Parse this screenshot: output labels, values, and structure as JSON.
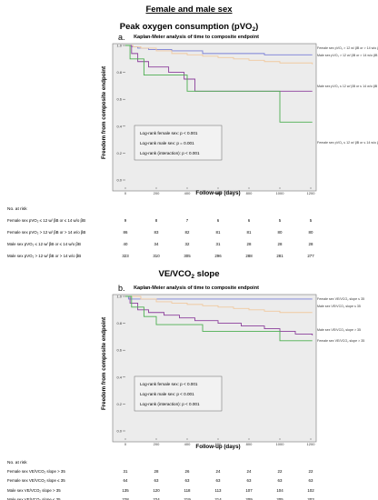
{
  "page": {
    "title": "Female and male sex"
  },
  "panels": [
    {
      "section_title": "Peak oxygen consumption (pVO",
      "section_sub": "2",
      "section_tail": ")",
      "panel_label": "a.",
      "plot_title": "Kaplan-Meier analysis of time to composite endpoint",
      "logrank": [
        "Log-rank female sex: p < 0.001",
        "Log-rank male sex: p = 0.001",
        "Log-rank (interaction): p < 0.001"
      ],
      "risk_header": "No. at risk",
      "risk_rows": [
        {
          "label": "Female sex pVO₂ ≤ 12 w/ βB or ≤ 14 w/o βB",
          "values": [
            "9",
            "8",
            "7",
            "6",
            "6",
            "5",
            "5"
          ]
        },
        {
          "label": "Female sex pVO₂ > 12 w/ βB or > 14 w/o βB",
          "values": [
            "86",
            "83",
            "82",
            "81",
            "81",
            "80",
            "80"
          ]
        },
        {
          "label": "Male sex pVO₂ ≤ 12 w/ βB or ≤ 14 w/o βB",
          "values": [
            "40",
            "34",
            "32",
            "31",
            "28",
            "28",
            "28"
          ]
        },
        {
          "label": "Male sex pVO₂ > 12 w/ βB or > 14 w/o βB",
          "values": [
            "323",
            "310",
            "305",
            "296",
            "288",
            "281",
            "277"
          ]
        }
      ]
    },
    {
      "section_title": "VE/VCO",
      "section_sub": "2",
      "section_tail": " slope",
      "panel_label": "b.",
      "plot_title": "Kaplan-Meier analysis of time to composite endpoint",
      "logrank": [
        "Log-rank female sex: p < 0.001",
        "Log-rank male sex: p < 0.001",
        "Log-rank (interaction): p < 0.001"
      ],
      "risk_header": "No. at risk",
      "risk_rows": [
        {
          "label": "Female sex VE/VCO₂ slope > 35",
          "values": [
            "31",
            "28",
            "26",
            "24",
            "24",
            "22",
            "22"
          ]
        },
        {
          "label": "Female sex VE/VCO₂ slope ≤ 35",
          "values": [
            "64",
            "63",
            "63",
            "63",
            "63",
            "63",
            "63"
          ]
        },
        {
          "label": "Male sex VE/VCO₂ slope > 35",
          "values": [
            "135",
            "120",
            "118",
            "113",
            "107",
            "104",
            "102"
          ]
        },
        {
          "label": "Male sex VE/VCO₂ slope ≤ 35",
          "values": [
            "228",
            "224",
            "219",
            "214",
            "209",
            "205",
            "203"
          ]
        }
      ]
    }
  ],
  "chart_data": [
    {
      "type": "line",
      "title": "Kaplan-Meier analysis of time to composite endpoint",
      "xlabel": "Follow-up (days)",
      "ylabel": "Freedom from composite endpoint",
      "xlim": [
        0,
        1200
      ],
      "ylim": [
        0.0,
        1.0
      ],
      "xticks": [
        0,
        200,
        400,
        600,
        800,
        1000,
        1200
      ],
      "yticks": [
        0.0,
        0.2,
        0.4,
        0.6,
        0.8,
        1.0
      ],
      "series": [
        {
          "name": "Female sex pVO₂ > 12 w/ βB or > 14 w/o βB",
          "color": "#7a7fd6",
          "x": [
            0,
            40,
            80,
            150,
            300,
            500,
            700,
            900,
            1210
          ],
          "y": [
            1.0,
            0.99,
            0.98,
            0.97,
            0.96,
            0.94,
            0.94,
            0.93,
            0.93
          ]
        },
        {
          "name": "Male sex pVO₂ > 12 w/ βB or > 14 w/o βB",
          "color": "#f0c9a0",
          "x": [
            0,
            50,
            100,
            200,
            300,
            400,
            500,
            600,
            700,
            800,
            900,
            1000,
            1210
          ],
          "y": [
            1.0,
            0.99,
            0.98,
            0.96,
            0.94,
            0.93,
            0.92,
            0.91,
            0.9,
            0.89,
            0.88,
            0.87,
            0.86
          ]
        },
        {
          "name": "Male sex pVO₂ ≤ 12 w/ βB or ≤ 14 w/o βB",
          "color": "#8b3f9b",
          "x": [
            0,
            40,
            80,
            150,
            280,
            380,
            450,
            1210
          ],
          "y": [
            1.0,
            0.94,
            0.88,
            0.84,
            0.8,
            0.75,
            0.66,
            0.66
          ]
        },
        {
          "name": "Female sex pVO₂ ≤ 12 w/ βB or ≤ 14 w/o βB",
          "color": "#4caf50",
          "x": [
            0,
            30,
            120,
            400,
            1000,
            1210
          ],
          "y": [
            1.0,
            0.9,
            0.78,
            0.66,
            0.43,
            0.43
          ]
        }
      ]
    },
    {
      "type": "line",
      "title": "Kaplan-Meier analysis of time to composite endpoint",
      "xlabel": "Follow-up (days)",
      "ylabel": "Freedom from composite endpoint",
      "xlim": [
        0,
        1200
      ],
      "ylim": [
        0.0,
        1.0
      ],
      "xticks": [
        0,
        200,
        400,
        600,
        800,
        1000,
        1200
      ],
      "yticks": [
        0.0,
        0.2,
        0.4,
        0.6,
        0.8,
        1.0
      ],
      "series": [
        {
          "name": "Female sex VE/VCO₂ slope ≤ 35",
          "color": "#7a7fd6",
          "x": [
            0,
            20,
            1210
          ],
          "y": [
            1.0,
            0.98,
            0.98
          ]
        },
        {
          "name": "Male sex VE/VCO₂ slope ≤ 35",
          "color": "#f0c9a0",
          "x": [
            0,
            100,
            200,
            300,
            400,
            500,
            600,
            700,
            800,
            900,
            1000,
            1210
          ],
          "y": [
            1.0,
            0.98,
            0.96,
            0.95,
            0.94,
            0.93,
            0.92,
            0.91,
            0.9,
            0.89,
            0.88,
            0.88
          ]
        },
        {
          "name": "Male sex VE/VCO₂ slope > 35",
          "color": "#8b3f9b",
          "x": [
            0,
            30,
            80,
            150,
            250,
            350,
            450,
            600,
            750,
            900,
            1000,
            1100,
            1210
          ],
          "y": [
            1.0,
            0.95,
            0.9,
            0.88,
            0.86,
            0.84,
            0.82,
            0.8,
            0.78,
            0.76,
            0.74,
            0.72,
            0.71
          ]
        },
        {
          "name": "Female sex VE/VCO₂ slope > 35",
          "color": "#4caf50",
          "x": [
            0,
            40,
            120,
            200,
            500,
            1000,
            1210
          ],
          "y": [
            1.0,
            0.92,
            0.85,
            0.79,
            0.74,
            0.67,
            0.67
          ]
        }
      ]
    }
  ]
}
